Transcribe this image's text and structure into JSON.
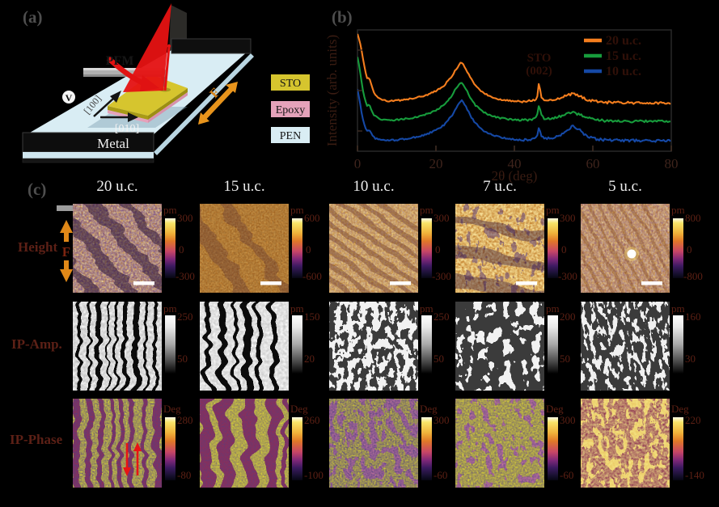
{
  "figure": {
    "background": "#000000"
  },
  "panels": {
    "a": {
      "label": "(a)",
      "labels": {
        "pfm": "PFM",
        "voltage": "V",
        "axis_100": "[100]",
        "axis_010": "[010]",
        "metal": "Metal",
        "force": "F"
      },
      "legend": [
        {
          "name": "STO",
          "color": "#d6c52e"
        },
        {
          "name": "Epoxy",
          "color": "#e5a2ba"
        },
        {
          "name": "PEN",
          "color": "#d9edf4"
        }
      ]
    },
    "b": {
      "label": "(b)"
    },
    "c": {
      "label": "(c)",
      "force_label": "F",
      "columns": [
        "20 u.c.",
        "15 u.c.",
        "10 u.c.",
        "7 u.c.",
        "5 u.c."
      ],
      "rows": [
        {
          "label": "Height",
          "unit": "pm",
          "colormap": "thermal",
          "bars": [
            [
              "300",
              "0",
              "-300"
            ],
            [
              "600",
              "0",
              "-600"
            ],
            [
              "300",
              "0",
              "-300"
            ],
            [
              "300",
              "0",
              "-300"
            ],
            [
              "800",
              "0",
              "-800"
            ]
          ]
        },
        {
          "label": "IP-Amp.",
          "unit": "pm",
          "colormap": "gray",
          "bars": [
            [
              "250",
              "50"
            ],
            [
              "150",
              "20"
            ],
            [
              "250",
              "50"
            ],
            [
              "200",
              "50"
            ],
            [
              "160",
              "30"
            ]
          ]
        },
        {
          "label": "IP-Phase",
          "unit": "Deg",
          "colormap": "thermal",
          "bars": [
            [
              "280",
              "-80"
            ],
            [
              "260",
              "-100"
            ],
            [
              "300",
              "-60"
            ],
            [
              "300",
              "-60"
            ],
            [
              "220",
              "-140"
            ]
          ]
        }
      ]
    }
  },
  "chart_data": {
    "type": "line",
    "title": "",
    "xlabel": "2θ (deg)",
    "ylabel": "Intensity (arb. units)",
    "xlim": [
      0,
      80
    ],
    "ylim": [
      0,
      145
    ],
    "xticks": [
      0,
      20,
      40,
      60,
      80
    ],
    "grid": false,
    "legend_position": "top-right",
    "annotation": {
      "label": "STO",
      "sublabel": "(002)",
      "x": 46.3
    },
    "x": [
      0,
      0.5,
      1,
      1.5,
      2,
      2.5,
      3,
      4,
      5,
      6,
      8,
      10,
      12,
      14,
      16,
      18,
      20,
      22,
      24,
      25,
      26,
      26.5,
      27,
      28,
      29,
      30,
      32,
      34,
      36,
      38,
      40,
      42,
      44,
      45,
      45.8,
      46.3,
      46.8,
      47.5,
      48.5,
      50,
      52,
      53.5,
      55,
      56.5,
      58,
      60,
      63,
      66,
      70,
      74,
      78,
      80
    ],
    "series": [
      {
        "name": "20 u.c.",
        "color": "#f57e1e",
        "y": [
          140,
          133,
          122,
          108,
          95,
          86,
          88,
          72,
          65,
          62,
          60,
          60.5,
          61.5,
          63,
          65,
          68,
          72,
          78,
          89,
          97,
          104,
          106,
          103,
          95,
          86,
          79,
          70,
          65,
          62.5,
          61,
          60,
          59.5,
          60,
          61,
          64.5,
          84,
          65,
          61.5,
          61,
          62,
          64.5,
          67,
          68.5,
          66,
          62.5,
          60,
          58.5,
          58,
          57.8,
          57.6,
          57.5,
          57.5
        ]
      },
      {
        "name": "15 u.c.",
        "color": "#179c3c",
        "y": [
          113,
          100,
          84,
          70,
          60,
          54,
          56,
          44,
          40,
          38,
          37,
          37.5,
          38.5,
          40,
          42,
          45,
          49,
          55,
          66,
          74,
          80,
          81.5,
          79,
          71,
          62,
          55,
          47,
          42.5,
          40,
          38.5,
          37.5,
          37,
          37.5,
          38.5,
          42,
          58,
          42.5,
          39.5,
          39,
          40,
          42.5,
          45,
          46.5,
          44,
          40.5,
          38,
          36.5,
          36,
          35.8,
          35.6,
          35.5,
          35.5
        ]
      },
      {
        "name": "10 u.c.",
        "color": "#1548a5",
        "y": [
          74,
          62,
          47,
          36,
          28,
          24,
          26,
          17,
          14.5,
          13.5,
          13,
          13.5,
          14.5,
          16,
          18,
          21,
          25,
          31,
          42,
          50,
          58,
          61,
          58,
          50,
          41,
          34,
          25,
          20,
          17,
          15,
          14,
          13.5,
          14,
          15,
          18,
          30.5,
          19,
          15.5,
          15,
          16,
          20,
          26,
          30,
          26,
          19,
          15,
          13.5,
          13,
          12.8,
          12.6,
          12.5,
          12.5
        ]
      }
    ]
  }
}
